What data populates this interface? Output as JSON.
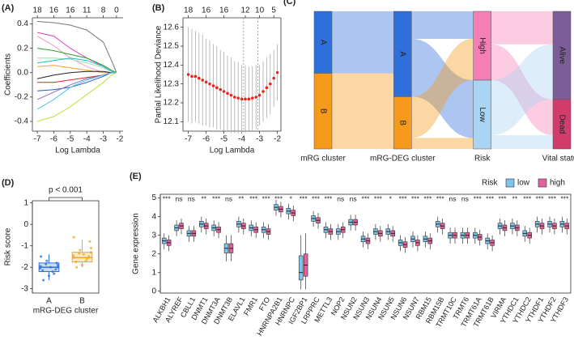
{
  "chart_data": [
    {
      "type": "line",
      "panel_label": "(A)",
      "xlabel": "Log Lambda",
      "ylabel": "Coefficients",
      "x": [
        -7,
        -6,
        -5,
        -4,
        -3,
        -2.5,
        -2.2
      ],
      "xlim": [
        -7.3,
        -1.8
      ],
      "xticks": [
        -7,
        -6,
        -5,
        -4,
        -3,
        -2
      ],
      "ylim": [
        -0.48,
        0.45
      ],
      "yticks": [
        -0.4,
        -0.2,
        {
          "value": 0,
          "label": "0.0"
        },
        0.2,
        0.4
      ],
      "x2ticks": [
        {
          "value": -7,
          "label": "18"
        },
        {
          "value": -6,
          "label": "16"
        },
        {
          "value": -5,
          "label": "16"
        },
        {
          "value": -4,
          "label": "11"
        },
        {
          "value": -3,
          "label": "8"
        },
        {
          "value": -2.2,
          "label": "0"
        }
      ],
      "series": [
        {
          "color": "#777777",
          "values": [
            0.42,
            0.41,
            0.39,
            0.35,
            0.25,
            0.1,
            0
          ]
        },
        {
          "color": "#e040c0",
          "values": [
            0.33,
            0.3,
            0.2,
            0.12,
            0.05,
            0.01,
            0
          ]
        },
        {
          "color": "#f59ac8",
          "values": [
            0.3,
            0.22,
            0.12,
            0.05,
            0,
            0,
            0
          ]
        },
        {
          "color": "#2ca02c",
          "values": [
            0.2,
            0.18,
            0.15,
            0.12,
            0.06,
            0.02,
            0
          ]
        },
        {
          "color": "#9be29b",
          "values": [
            0.12,
            0.12,
            0.11,
            0.08,
            0.04,
            0.01,
            0
          ]
        },
        {
          "color": "#17becf",
          "values": [
            0.08,
            0.1,
            0.12,
            0.1,
            0.05,
            0.01,
            0
          ]
        },
        {
          "color": "#ff9f1c",
          "values": [
            0.05,
            0.06,
            0.04,
            0.02,
            0,
            0,
            0
          ]
        },
        {
          "color": "#222222",
          "values": [
            -0.05,
            -0.02,
            0,
            0.01,
            0.01,
            0,
            0
          ]
        },
        {
          "color": "#d62728",
          "values": [
            -0.08,
            -0.08,
            -0.06,
            -0.04,
            -0.02,
            0,
            0
          ]
        },
        {
          "color": "#1f5fd0",
          "values": [
            -0.15,
            -0.14,
            -0.12,
            -0.08,
            -0.03,
            0,
            0
          ]
        },
        {
          "color": "#9467bd",
          "values": [
            -0.22,
            -0.16,
            -0.1,
            -0.05,
            -0.02,
            0,
            0
          ]
        },
        {
          "color": "#4fc3f7",
          "values": [
            -0.3,
            -0.22,
            -0.12,
            -0.06,
            -0.02,
            0,
            0
          ]
        },
        {
          "color": "#c5e03a",
          "values": [
            -0.4,
            -0.36,
            -0.28,
            -0.18,
            -0.08,
            -0.02,
            0
          ]
        }
      ]
    },
    {
      "type": "errorbar",
      "panel_label": "(B)",
      "xlabel": "Log Lambda",
      "ylabel": "Partial Likelihood Deviance",
      "color": "#e8241c",
      "x": [
        -7,
        -6.8,
        -6.6,
        -6.4,
        -6.2,
        -6,
        -5.8,
        -5.6,
        -5.4,
        -5.2,
        -5,
        -4.8,
        -4.6,
        -4.4,
        -4.2,
        -4,
        -3.8,
        -3.6,
        -3.4,
        -3.2,
        -3,
        -2.8,
        -2.6,
        -2.4,
        -2.2,
        -2
      ],
      "values": [
        12.35,
        12.34,
        12.34,
        12.33,
        12.32,
        12.31,
        12.3,
        12.29,
        12.28,
        12.27,
        12.26,
        12.25,
        12.24,
        12.23,
        12.225,
        12.22,
        12.22,
        12.22,
        12.225,
        12.23,
        12.24,
        12.26,
        12.28,
        12.3,
        12.33,
        12.36
      ],
      "errors": [
        0.25,
        0.25,
        0.24,
        0.24,
        0.24,
        0.23,
        0.23,
        0.22,
        0.22,
        0.21,
        0.21,
        0.2,
        0.2,
        0.19,
        0.19,
        0.18,
        0.18,
        0.17,
        0.17,
        0.17,
        0.16,
        0.16,
        0.16,
        0.16,
        0.15,
        0.15
      ],
      "vlines": [
        -3.9,
        -3.1
      ],
      "xlim": [
        -7.3,
        -1.8
      ],
      "xticks": [
        -7,
        -6,
        -5,
        -4,
        -3,
        -2
      ],
      "ylim": [
        12.05,
        12.65
      ],
      "yticks": [
        12.1,
        12.2,
        12.3,
        12.4,
        12.5,
        12.6
      ],
      "x2ticks": [
        {
          "value": -7,
          "label": "18"
        },
        {
          "value": -6,
          "label": "16"
        },
        {
          "value": -5,
          "label": "16"
        },
        {
          "value": -3.8,
          "label": "12"
        },
        {
          "value": -3,
          "label": "10"
        },
        {
          "value": -2.2,
          "label": "5"
        }
      ]
    },
    {
      "type": "sankey",
      "panel_label": "(C)",
      "stages": [
        {
          "name": "mRG cluster",
          "nodes": [
            {
              "label": "A",
              "value": 45,
              "color": "#2f6fdc"
            },
            {
              "label": "B",
              "value": 55,
              "color": "#f59a1b"
            }
          ]
        },
        {
          "name": "mRG-DEG cluster",
          "nodes": [
            {
              "label": "A",
              "value": 62,
              "color": "#2f6fdc"
            },
            {
              "label": "B",
              "value": 38,
              "color": "#f59a1b"
            }
          ]
        },
        {
          "name": "Risk",
          "nodes": [
            {
              "label": "High",
              "value": 50,
              "color": "#f47fb6"
            },
            {
              "label": "Low",
              "value": 50,
              "color": "#a9d4f2"
            }
          ]
        },
        {
          "name": "Vital status",
          "nodes": [
            {
              "label": "Alive",
              "value": 64,
              "color": "#7b5e97"
            },
            {
              "label": "Dead",
              "value": 36,
              "color": "#d23c6d"
            }
          ]
        }
      ],
      "links": [
        [
          [
            45,
            0
          ],
          [
            17,
            38
          ]
        ],
        [
          [
            20,
            42
          ],
          [
            30,
            8
          ]
        ],
        [
          [
            24,
            26
          ],
          [
            40,
            10
          ]
        ]
      ]
    },
    {
      "type": "box",
      "panel_label": "(D)",
      "xlabel": "mRG-DEG cluster",
      "ylabel": "Risk score",
      "annotation": "p < 0.001",
      "categories": [
        "A",
        "B"
      ],
      "colors": [
        "#2f6fdc",
        "#f5a623"
      ],
      "ylim": [
        -3.2,
        1.1
      ],
      "yticks": [
        -3,
        -2,
        -1,
        0,
        1
      ],
      "boxes": [
        {
          "med": -2.0,
          "q1": -2.2,
          "q3": -1.8,
          "whislo": -2.6,
          "whishi": -1.4
        },
        {
          "med": -1.55,
          "q1": -1.75,
          "q3": -1.3,
          "whislo": -2.0,
          "whishi": -0.7
        }
      ],
      "points": [
        [
          -2.4,
          -2.2,
          -2.1,
          -2.0,
          -1.9,
          -1.8,
          -2.3,
          -2.0,
          -1.7,
          -2.6,
          -1.5,
          -2.05,
          -1.95,
          -2.15,
          -1.85
        ],
        [
          -1.9,
          -1.7,
          -1.5,
          -1.3,
          -1.1,
          -0.8,
          -1.6,
          -1.4,
          -1.2,
          -2.0,
          -1.55,
          -1.45,
          -0.6,
          -1.75,
          -1.35
        ]
      ]
    },
    {
      "type": "groupbox",
      "panel_label": "(E)",
      "ylabel": "Gene expression",
      "legend_title": "Risk",
      "categories": [
        "ALKBH1",
        "ALYREF",
        "CBLL1",
        "DNMT1",
        "DNMT3A",
        "DNMT3B",
        "ELAVL1",
        "FMR1",
        "FTO",
        "HNRNPA2B1",
        "HNRNPC",
        "IGF2BP1",
        "LRPPRC",
        "METTL3",
        "NOP2",
        "NSUN2",
        "NSUN3",
        "NSUN4",
        "NSUN5",
        "NSUN6",
        "NSUN7",
        "RBM15",
        "RBM15B",
        "TRMT10C",
        "TRMT6",
        "TRMT61A",
        "TRMT61B",
        "VIRMA",
        "YTHDC1",
        "YTHDC2",
        "YTHDF1",
        "YTHDF2",
        "YTHDF3"
      ],
      "annotations": [
        "***",
        "ns",
        "ns",
        "**",
        "***",
        "ns",
        "**",
        "***",
        "***",
        "***",
        "*",
        "***",
        "***",
        "***",
        "ns",
        "ns",
        "***",
        "***",
        "*",
        "***",
        "***",
        "***",
        "***",
        "ns",
        "ns",
        "***",
        "***",
        "***",
        "**",
        "***",
        "***",
        "***",
        "***"
      ],
      "ylim": [
        -0.1,
        5.2
      ],
      "yticks": [
        0,
        1,
        2,
        3,
        4,
        5
      ],
      "series": [
        {
          "name": "low",
          "color": "#7ec3ea",
          "med": [
            2.7,
            3.4,
            3.1,
            3.6,
            3.4,
            2.3,
            3.6,
            3.4,
            3.3,
            4.5,
            4.3,
            1.0,
            3.9,
            3.3,
            3.2,
            3.7,
            2.8,
            3.2,
            3.2,
            2.6,
            2.8,
            2.8,
            3.6,
            3.0,
            3.0,
            3.0,
            2.7,
            3.5,
            3.5,
            3.1,
            3.6,
            3.6,
            3.6
          ],
          "q1": [
            2.55,
            3.25,
            2.95,
            3.45,
            3.25,
            2.05,
            3.45,
            3.25,
            3.15,
            4.35,
            4.15,
            0.6,
            3.75,
            3.15,
            3.05,
            3.55,
            2.65,
            3.05,
            3.05,
            2.45,
            2.65,
            2.65,
            3.45,
            2.85,
            2.85,
            2.85,
            2.55,
            3.35,
            3.35,
            2.95,
            3.45,
            3.45,
            3.45
          ],
          "q3": [
            2.85,
            3.55,
            3.25,
            3.75,
            3.55,
            2.55,
            3.75,
            3.55,
            3.45,
            4.65,
            4.45,
            1.9,
            4.05,
            3.45,
            3.35,
            3.85,
            2.95,
            3.35,
            3.35,
            2.75,
            2.95,
            2.95,
            3.75,
            3.15,
            3.15,
            3.15,
            2.85,
            3.65,
            3.65,
            3.25,
            3.75,
            3.75,
            3.75
          ],
          "whislo": [
            2.25,
            2.95,
            2.65,
            3.15,
            2.95,
            1.6,
            3.15,
            2.95,
            2.85,
            4.05,
            3.85,
            0.1,
            3.45,
            2.85,
            2.75,
            3.25,
            2.35,
            2.75,
            2.75,
            2.15,
            2.35,
            2.35,
            3.15,
            2.55,
            2.55,
            2.55,
            2.25,
            3.05,
            3.05,
            2.65,
            3.15,
            3.15,
            3.15
          ],
          "whishi": [
            3.1,
            3.8,
            3.5,
            4.0,
            3.8,
            3.0,
            4.0,
            3.8,
            3.7,
            4.9,
            4.7,
            3.0,
            4.3,
            3.7,
            3.6,
            4.1,
            3.2,
            3.6,
            3.6,
            3.0,
            3.2,
            3.2,
            4.0,
            3.4,
            3.4,
            3.4,
            3.1,
            3.9,
            3.9,
            3.5,
            4.0,
            4.0,
            4.0
          ]
        },
        {
          "name": "high",
          "color": "#e3609e",
          "med": [
            2.6,
            3.5,
            3.1,
            3.5,
            3.3,
            2.3,
            3.5,
            3.3,
            3.2,
            4.4,
            4.2,
            1.4,
            3.8,
            3.2,
            3.3,
            3.7,
            2.7,
            3.1,
            3.1,
            2.5,
            2.6,
            2.7,
            3.5,
            3.0,
            3.0,
            2.9,
            2.6,
            3.4,
            3.4,
            3.0,
            3.5,
            3.5,
            3.5
          ],
          "q1": [
            2.45,
            3.35,
            2.95,
            3.35,
            3.15,
            2.05,
            3.35,
            3.15,
            3.05,
            4.25,
            4.05,
            0.8,
            3.65,
            3.05,
            3.15,
            3.55,
            2.55,
            2.95,
            2.95,
            2.35,
            2.45,
            2.55,
            3.35,
            2.85,
            2.85,
            2.75,
            2.45,
            3.25,
            3.25,
            2.85,
            3.35,
            3.35,
            3.35
          ],
          "q3": [
            2.75,
            3.65,
            3.25,
            3.65,
            3.45,
            2.55,
            3.65,
            3.45,
            3.35,
            4.55,
            4.35,
            2.0,
            3.95,
            3.35,
            3.45,
            3.85,
            2.85,
            3.25,
            3.25,
            2.65,
            2.75,
            2.85,
            3.65,
            3.15,
            3.15,
            3.05,
            2.75,
            3.55,
            3.55,
            3.15,
            3.65,
            3.65,
            3.65
          ],
          "whislo": [
            2.15,
            3.05,
            2.65,
            3.05,
            2.85,
            1.6,
            3.05,
            2.85,
            2.75,
            3.95,
            3.75,
            0.1,
            3.35,
            2.75,
            2.85,
            3.25,
            2.25,
            2.65,
            2.65,
            2.05,
            2.15,
            2.25,
            3.05,
            2.55,
            2.55,
            2.45,
            2.15,
            2.95,
            2.95,
            2.55,
            3.05,
            3.05,
            3.05
          ],
          "whishi": [
            3.0,
            3.9,
            3.5,
            3.9,
            3.7,
            3.0,
            3.9,
            3.7,
            3.6,
            4.8,
            4.6,
            3.1,
            4.2,
            3.6,
            3.7,
            4.1,
            3.1,
            3.5,
            3.5,
            2.9,
            3.0,
            3.1,
            3.9,
            3.4,
            3.4,
            3.3,
            3.0,
            3.8,
            3.8,
            3.4,
            3.9,
            3.9,
            3.9
          ]
        }
      ]
    }
  ]
}
